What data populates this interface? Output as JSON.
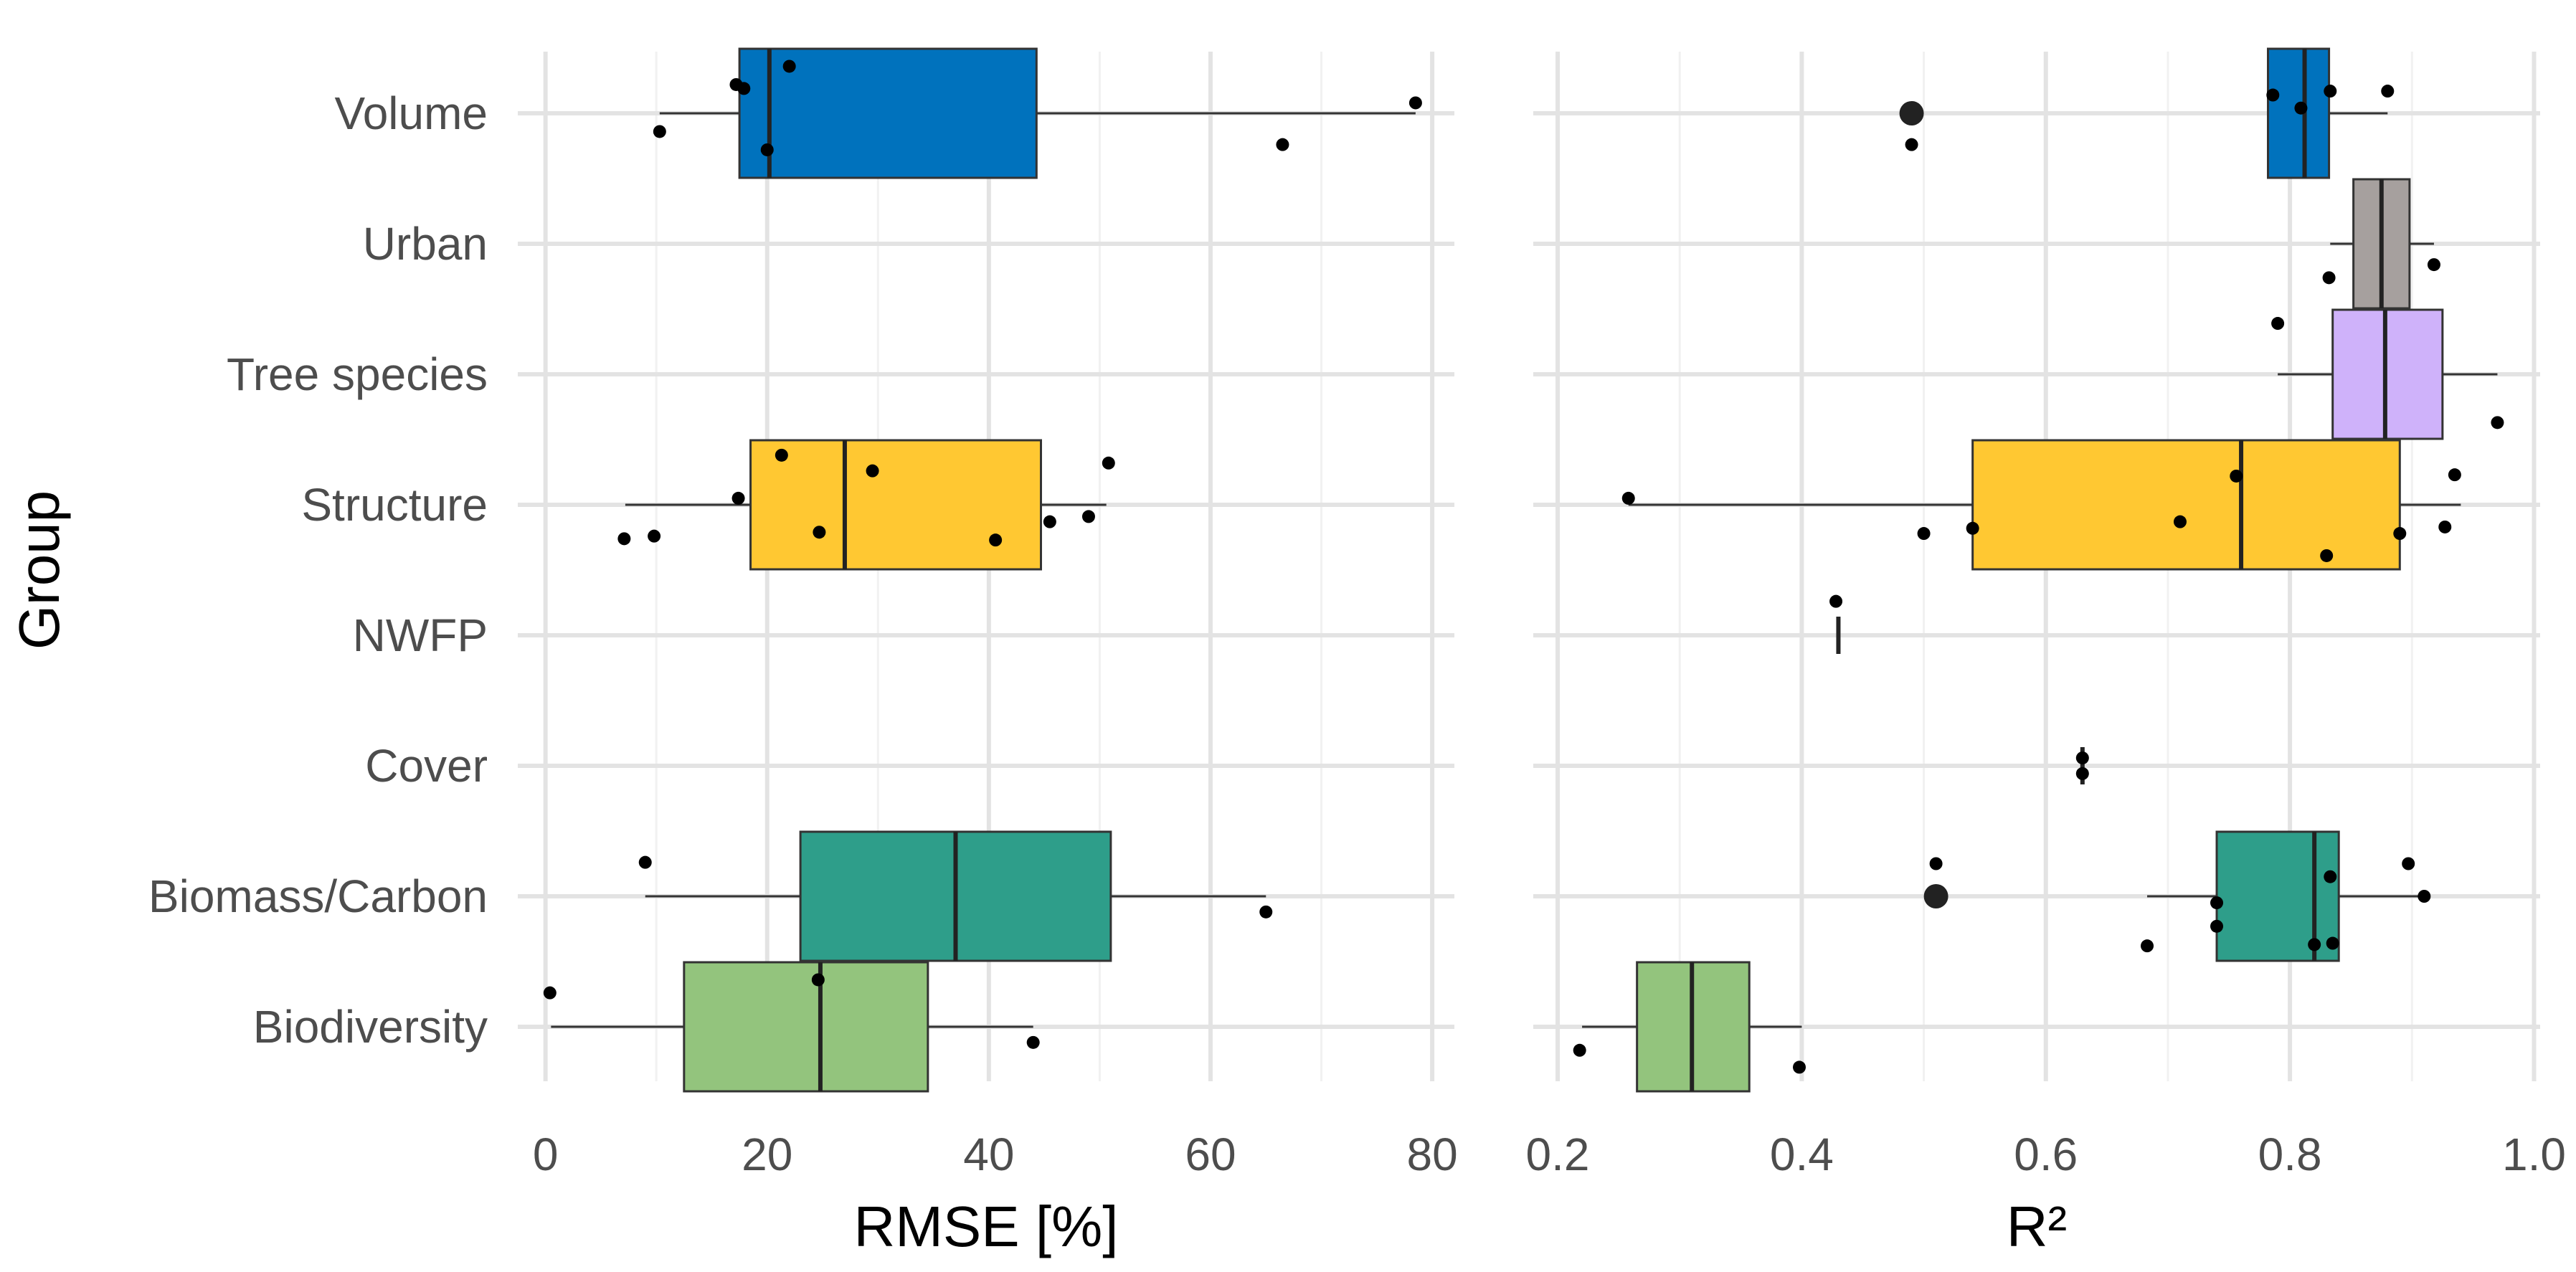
{
  "chart_data": {
    "type": "boxplot",
    "ylabel": "Group",
    "groups": [
      "Volume",
      "Urban",
      "Tree species",
      "Structure",
      "NWFP",
      "Cover",
      "Biomass/Carbon",
      "Biodiversity"
    ],
    "colors": {
      "Volume": "#0072BD",
      "Urban": "#A6A09E",
      "Tree species": "#CFB2FA",
      "Structure": "#FFC832",
      "NWFP": "#7D7D7D",
      "Cover": "#7D7D7D",
      "Biomass/Carbon": "#2E9E8A",
      "Biodiversity": "#93C47D"
    },
    "panels": [
      {
        "id": "rmse",
        "xlabel": "RMSE [%]",
        "xlim": [
          -2.5,
          82
        ],
        "ticks": [
          0,
          20,
          40,
          60,
          80
        ],
        "minor_ticks": [
          10,
          30,
          50,
          70
        ],
        "tick_labels": [
          "0",
          "20",
          "40",
          "60",
          "80"
        ],
        "boxes": [
          {
            "group": "Volume",
            "q1": 17.5,
            "median": 20.2,
            "q3": 44.3,
            "whisker_low": 10.3,
            "whisker_high": 78.5,
            "outliers": []
          },
          {
            "group": "Structure",
            "q1": 18.5,
            "median": 27.0,
            "q3": 44.7,
            "whisker_low": 7.2,
            "whisker_high": 50.6,
            "outliers": []
          },
          {
            "group": "Biomass/Carbon",
            "q1": 23.0,
            "median": 37.0,
            "q3": 51.0,
            "whisker_low": 9.0,
            "whisker_high": 65.0,
            "outliers": []
          },
          {
            "group": "Biodiversity",
            "q1": 12.5,
            "median": 24.8,
            "q3": 34.5,
            "whisker_low": 0.5,
            "whisker_high": 44.0,
            "outliers": []
          }
        ],
        "points": [
          {
            "group": "Volume",
            "x": 22.0,
            "jitter": -0.36
          },
          {
            "group": "Volume",
            "x": 17.2,
            "jitter": -0.22
          },
          {
            "group": "Volume",
            "x": 17.9,
            "jitter": -0.19
          },
          {
            "group": "Volume",
            "x": 78.5,
            "jitter": -0.08
          },
          {
            "group": "Volume",
            "x": 10.3,
            "jitter": 0.14
          },
          {
            "group": "Volume",
            "x": 66.5,
            "jitter": 0.24
          },
          {
            "group": "Volume",
            "x": 20.0,
            "jitter": 0.28
          },
          {
            "group": "Structure",
            "x": 21.3,
            "jitter": -0.38
          },
          {
            "group": "Structure",
            "x": 50.8,
            "jitter": -0.32
          },
          {
            "group": "Structure",
            "x": 29.5,
            "jitter": -0.26
          },
          {
            "group": "Structure",
            "x": 17.4,
            "jitter": -0.05
          },
          {
            "group": "Structure",
            "x": 45.5,
            "jitter": 0.13
          },
          {
            "group": "Structure",
            "x": 49.0,
            "jitter": 0.09
          },
          {
            "group": "Structure",
            "x": 24.7,
            "jitter": 0.21
          },
          {
            "group": "Structure",
            "x": 9.8,
            "jitter": 0.24
          },
          {
            "group": "Structure",
            "x": 7.1,
            "jitter": 0.26
          },
          {
            "group": "Structure",
            "x": 40.6,
            "jitter": 0.27
          },
          {
            "group": "Biomass/Carbon",
            "x": 9.0,
            "jitter": -0.26
          },
          {
            "group": "Biomass/Carbon",
            "x": 65.0,
            "jitter": 0.12
          },
          {
            "group": "Biodiversity",
            "x": 0.4,
            "jitter": -0.26
          },
          {
            "group": "Biodiversity",
            "x": 24.6,
            "jitter": -0.36
          },
          {
            "group": "Biodiversity",
            "x": 44.0,
            "jitter": 0.12
          }
        ]
      },
      {
        "id": "r2",
        "xlabel": "R²",
        "xlim": [
          0.18,
          1.005
        ],
        "ticks": [
          0.2,
          0.4,
          0.6,
          0.8,
          1.0
        ],
        "minor_ticks": [
          0.3,
          0.5,
          0.7,
          0.9
        ],
        "tick_labels": [
          "0.2",
          "0.4",
          "0.6",
          "0.8",
          "1.0"
        ],
        "boxes": [
          {
            "group": "Volume",
            "q1": 0.782,
            "median": 0.812,
            "q3": 0.832,
            "whisker_low": 0.782,
            "whisker_high": 0.88,
            "outliers": [
              0.49
            ]
          },
          {
            "group": "Urban",
            "q1": 0.852,
            "median": 0.875,
            "q3": 0.898,
            "whisker_low": 0.833,
            "whisker_high": 0.918,
            "outliers": []
          },
          {
            "group": "Tree species",
            "q1": 0.835,
            "median": 0.878,
            "q3": 0.925,
            "whisker_low": 0.79,
            "whisker_high": 0.97,
            "outliers": []
          },
          {
            "group": "Structure",
            "q1": 0.54,
            "median": 0.76,
            "q3": 0.89,
            "whisker_low": 0.258,
            "whisker_high": 0.94,
            "outliers": []
          },
          {
            "group": "NWFP",
            "q1": 0.43,
            "median": 0.43,
            "q3": 0.43,
            "whisker_low": 0.43,
            "whisker_high": 0.43,
            "outliers": []
          },
          {
            "group": "Cover",
            "q1": 0.63,
            "median": 0.63,
            "q3": 0.63,
            "whisker_low": 0.63,
            "whisker_high": 0.63,
            "outliers": []
          },
          {
            "group": "Biomass/Carbon",
            "q1": 0.74,
            "median": 0.82,
            "q3": 0.84,
            "whisker_low": 0.683,
            "whisker_high": 0.91,
            "outliers": [
              0.51
            ]
          },
          {
            "group": "Biodiversity",
            "q1": 0.265,
            "median": 0.31,
            "q3": 0.357,
            "whisker_low": 0.22,
            "whisker_high": 0.4,
            "outliers": []
          }
        ],
        "points": [
          {
            "group": "Volume",
            "x": 0.786,
            "jitter": -0.14
          },
          {
            "group": "Volume",
            "x": 0.833,
            "jitter": -0.17
          },
          {
            "group": "Volume",
            "x": 0.88,
            "jitter": -0.17
          },
          {
            "group": "Volume",
            "x": 0.809,
            "jitter": -0.04
          },
          {
            "group": "Volume",
            "x": 0.49,
            "jitter": 0.24
          },
          {
            "group": "Urban",
            "x": 0.918,
            "jitter": 0.16
          },
          {
            "group": "Urban",
            "x": 0.832,
            "jitter": 0.26
          },
          {
            "group": "Tree species",
            "x": 0.79,
            "jitter": -0.39
          },
          {
            "group": "Tree species",
            "x": 0.97,
            "jitter": 0.37
          },
          {
            "group": "Structure",
            "x": 0.935,
            "jitter": -0.23
          },
          {
            "group": "Structure",
            "x": 0.756,
            "jitter": -0.22
          },
          {
            "group": "Structure",
            "x": 0.258,
            "jitter": -0.05
          },
          {
            "group": "Structure",
            "x": 0.71,
            "jitter": 0.13
          },
          {
            "group": "Structure",
            "x": 0.927,
            "jitter": 0.17
          },
          {
            "group": "Structure",
            "x": 0.54,
            "jitter": 0.18
          },
          {
            "group": "Structure",
            "x": 0.5,
            "jitter": 0.22
          },
          {
            "group": "Structure",
            "x": 0.89,
            "jitter": 0.22
          },
          {
            "group": "Structure",
            "x": 0.83,
            "jitter": 0.39
          },
          {
            "group": "NWFP",
            "x": 0.428,
            "jitter": -0.26
          },
          {
            "group": "Cover",
            "x": 0.63,
            "jitter": -0.06
          },
          {
            "group": "Cover",
            "x": 0.63,
            "jitter": 0.06
          },
          {
            "group": "Biomass/Carbon",
            "x": 0.51,
            "jitter": -0.25
          },
          {
            "group": "Biomass/Carbon",
            "x": 0.897,
            "jitter": -0.25
          },
          {
            "group": "Biomass/Carbon",
            "x": 0.833,
            "jitter": -0.15
          },
          {
            "group": "Biomass/Carbon",
            "x": 0.91,
            "jitter": 0.0
          },
          {
            "group": "Biomass/Carbon",
            "x": 0.74,
            "jitter": 0.05
          },
          {
            "group": "Biomass/Carbon",
            "x": 0.74,
            "jitter": 0.23
          },
          {
            "group": "Biomass/Carbon",
            "x": 0.683,
            "jitter": 0.38
          },
          {
            "group": "Biomass/Carbon",
            "x": 0.82,
            "jitter": 0.37
          },
          {
            "group": "Biomass/Carbon",
            "x": 0.835,
            "jitter": 0.36
          },
          {
            "group": "Biodiversity",
            "x": 0.218,
            "jitter": 0.18
          },
          {
            "group": "Biodiversity",
            "x": 0.398,
            "jitter": 0.31
          }
        ]
      }
    ]
  }
}
